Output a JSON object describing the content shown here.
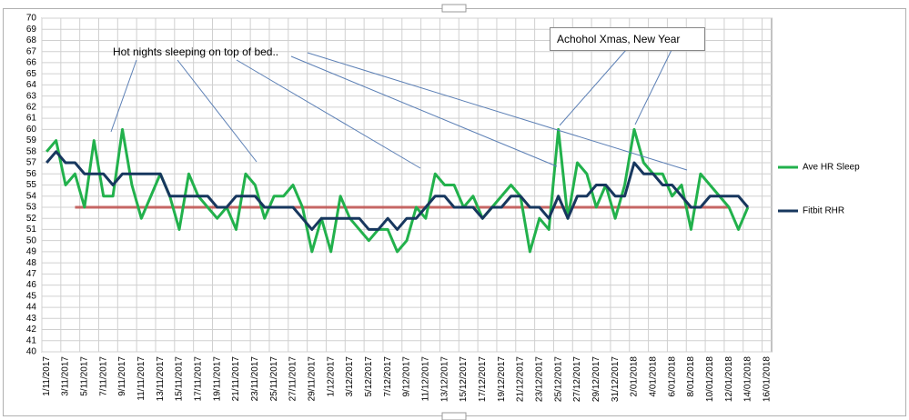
{
  "chart_data": {
    "type": "line",
    "categories": [
      "1/11/2017",
      null,
      "3/11/2017",
      null,
      "5/11/2017",
      null,
      "7/11/2017",
      null,
      "9/11/2017",
      null,
      "11/11/2017",
      null,
      "13/11/2017",
      null,
      "15/11/2017",
      null,
      "17/11/2017",
      null,
      "19/11/2017",
      null,
      "21/11/2017",
      null,
      "23/11/2017",
      null,
      "25/11/2017",
      null,
      "27/11/2017",
      null,
      "29/11/2017",
      null,
      "1/12/2017",
      null,
      "3/12/2017",
      null,
      "5/12/2017",
      null,
      "7/12/2017",
      null,
      "9/12/2017",
      null,
      "11/12/2017",
      null,
      "13/12/2017",
      null,
      "15/12/2017",
      null,
      "17/12/2017",
      null,
      "19/12/2017",
      null,
      "21/12/2017",
      null,
      "23/12/2017",
      null,
      "25/12/2017",
      null,
      "27/12/2017",
      null,
      "29/12/2017",
      null,
      "31/12/2017",
      null,
      "2/01/2018",
      null,
      "4/01/2018",
      null,
      "6/01/2018",
      null,
      "8/01/2018",
      null,
      "10/01/2018",
      null,
      "12/01/2018",
      null,
      "14/01/2018",
      null,
      "16/01/2018"
    ],
    "series": [
      {
        "name": "Ave HR Sleep",
        "color": "#22b14c",
        "values": [
          58,
          59,
          55,
          56,
          53,
          59,
          54,
          54,
          60,
          55,
          52,
          54,
          56,
          54,
          51,
          56,
          54,
          53,
          52,
          53,
          51,
          56,
          55,
          52,
          54,
          54,
          55,
          53,
          49,
          52,
          49,
          54,
          52,
          51,
          50,
          51,
          51,
          49,
          50,
          53,
          52,
          56,
          55,
          55,
          53,
          54,
          52,
          53,
          54,
          55,
          54,
          49,
          52,
          51,
          60,
          52,
          57,
          56,
          53,
          55,
          52,
          55,
          60,
          57,
          56,
          56,
          54,
          55,
          51,
          56,
          55,
          54,
          53,
          51,
          53,
          null,
          null
        ]
      },
      {
        "name": "Fitbit RHR",
        "color": "#17375e",
        "values": [
          57,
          58,
          57,
          57,
          56,
          56,
          56,
          55,
          56,
          56,
          56,
          56,
          56,
          54,
          54,
          54,
          54,
          54,
          53,
          53,
          54,
          54,
          54,
          53,
          53,
          53,
          53,
          52,
          51,
          52,
          52,
          52,
          52,
          52,
          51,
          51,
          52,
          51,
          52,
          52,
          53,
          54,
          54,
          53,
          53,
          53,
          52,
          53,
          53,
          54,
          54,
          53,
          53,
          52,
          54,
          52,
          54,
          54,
          55,
          55,
          54,
          54,
          57,
          56,
          56,
          55,
          55,
          54,
          53,
          53,
          54,
          54,
          54,
          54,
          53,
          null,
          null
        ]
      }
    ],
    "reference_lines": [
      {
        "value": 53,
        "color": "#c0504d"
      }
    ],
    "annotations": [
      "Hot  nights sleeping on top of bed..",
      "Achohol Xmas, New Year"
    ],
    "ylim": [
      40,
      70
    ],
    "yticks": [
      40,
      41,
      42,
      43,
      44,
      45,
      46,
      47,
      48,
      49,
      50,
      51,
      52,
      53,
      54,
      55,
      56,
      57,
      58,
      59,
      60,
      61,
      62,
      63,
      64,
      65,
      66,
      67,
      68,
      69,
      70
    ],
    "grid": true,
    "legend": "right"
  }
}
